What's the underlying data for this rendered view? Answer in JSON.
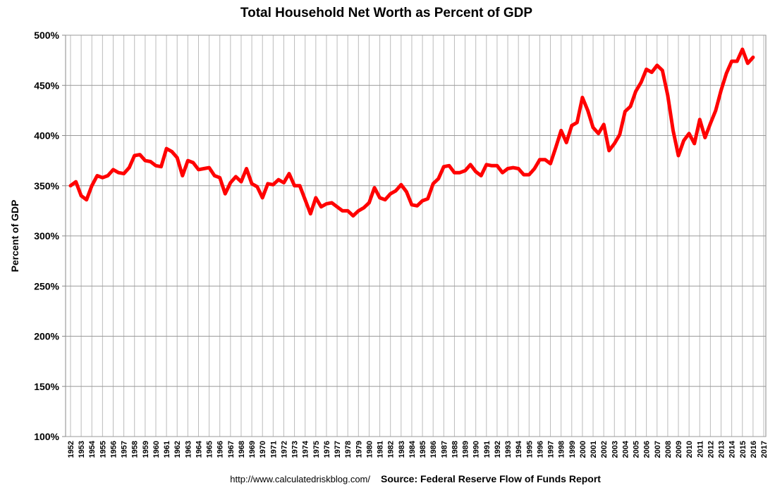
{
  "chart_data": {
    "type": "line",
    "title": "Total Household Net Worth as Percent of GDP",
    "y_label": "Percent of GDP",
    "footer_url": "http://www.calculatedriskblog.com/",
    "footer_source": "Source: Federal Reserve Flow of Funds Report",
    "categories": [
      "1952",
      null,
      "1953",
      null,
      "1954",
      null,
      "1955",
      null,
      "1956",
      null,
      "1957",
      null,
      "1958",
      null,
      "1959",
      null,
      "1960",
      null,
      "1961",
      null,
      "1962",
      null,
      "1963",
      null,
      "1964",
      null,
      "1965",
      null,
      "1966",
      null,
      "1967",
      null,
      "1968",
      null,
      "1969",
      null,
      "1970",
      null,
      "1971",
      null,
      "1972",
      null,
      "1973",
      null,
      "1974",
      null,
      "1975",
      null,
      "1976",
      null,
      "1977",
      null,
      "1978",
      null,
      "1979",
      null,
      "1980",
      null,
      "1981",
      null,
      "1982",
      null,
      "1983",
      null,
      "1984",
      null,
      "1985",
      null,
      "1986",
      null,
      "1987",
      null,
      "1988",
      null,
      "1989",
      null,
      "1990",
      null,
      "1991",
      null,
      "1992",
      null,
      "1993",
      null,
      "1994",
      null,
      "1995",
      null,
      "1996",
      null,
      "1997",
      null,
      "1998",
      null,
      "1999",
      null,
      "2000",
      null,
      "2001",
      null,
      "2002",
      null,
      "2003",
      null,
      "2004",
      null,
      "2005",
      null,
      "2006",
      null,
      "2007",
      null,
      "2008",
      null,
      "2009",
      null,
      "2010",
      null,
      "2011",
      null,
      "2012",
      null,
      "2013",
      null,
      "2014",
      null,
      "2015",
      null,
      "2016",
      null,
      "2017",
      null
    ],
    "series": [
      {
        "name": "Net worth as percent of GDP",
        "color": "#ff0000",
        "values": [
          350,
          354,
          340,
          336,
          350,
          360,
          358,
          360,
          366,
          363,
          362,
          368,
          380,
          381,
          375,
          374,
          370,
          369,
          387,
          384,
          378,
          360,
          375,
          373,
          366,
          367,
          368,
          360,
          358,
          342,
          353,
          359,
          354,
          367,
          352,
          349,
          338,
          352,
          351,
          356,
          353,
          362,
          350,
          350,
          336,
          322,
          338,
          329,
          332,
          333,
          329,
          325,
          325,
          320,
          325,
          328,
          333,
          348,
          338,
          336,
          342,
          345,
          351,
          344,
          331,
          330,
          335,
          337,
          352,
          357,
          369,
          370,
          363,
          363,
          365,
          371,
          364,
          360,
          371,
          370,
          370,
          363,
          367,
          368,
          367,
          361,
          361,
          367,
          376,
          376,
          372,
          388,
          405,
          393,
          410,
          413,
          438,
          425,
          408,
          402,
          411,
          385,
          392,
          401,
          424,
          429,
          444,
          453,
          466,
          463,
          470,
          465,
          440,
          405,
          380,
          395,
          402,
          392,
          416,
          398,
          412,
          425,
          445,
          462,
          474,
          474,
          486,
          472,
          478,
          null,
          null,
          null
        ]
      }
    ],
    "ylim": [
      100,
      500
    ],
    "yticks": [
      {
        "value": 100,
        "label": "100%"
      },
      {
        "value": 150,
        "label": "150%"
      },
      {
        "value": 200,
        "label": "200%"
      },
      {
        "value": 250,
        "label": "250%"
      },
      {
        "value": 300,
        "label": "300%"
      },
      {
        "value": 350,
        "label": "350%"
      },
      {
        "value": 400,
        "label": "400%"
      },
      {
        "value": 450,
        "label": "450%"
      },
      {
        "value": 500,
        "label": "500%"
      }
    ],
    "grid": true
  }
}
